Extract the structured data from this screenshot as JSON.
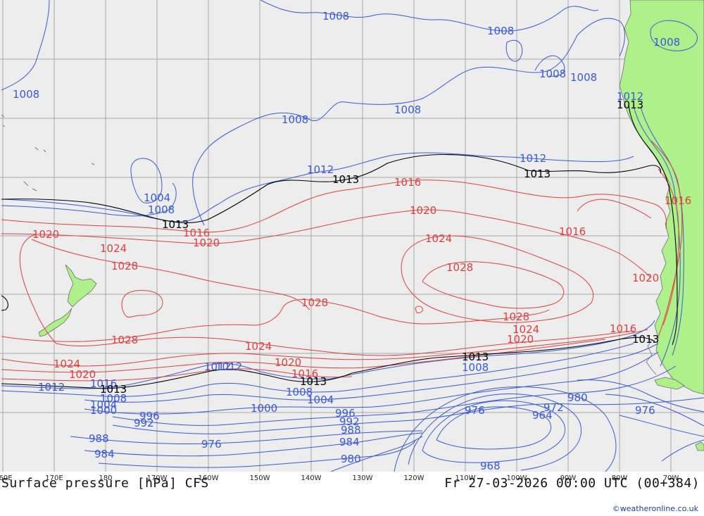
{
  "map": {
    "title": "Surface pressure [hPa] CFS",
    "valid_time": "Fr 27-03-2026 00:00 UTC (00+384)",
    "credit": "©weatheronline.co.uk",
    "longitude_ticks": [
      "60E",
      "170E",
      "180",
      "170W",
      "160W",
      "150W",
      "140W",
      "130W",
      "120W",
      "110W",
      "100W",
      "90W",
      "80W",
      "70W"
    ],
    "colors": {
      "land": "#aef08a",
      "ocean": "#ededed",
      "grid": "#a6a6a6",
      "high_isobar": "#e04040",
      "low_isobar": "#3a5ad8",
      "reference_isobar": "#000000"
    },
    "isobar_labels_red": [
      "1016",
      "1020",
      "1024",
      "1016",
      "1020",
      "1024",
      "1028",
      "1020",
      "1024",
      "1028",
      "1028",
      "1024",
      "1028",
      "1028",
      "1020",
      "1016",
      "1016",
      "1020",
      "1024",
      "1016",
      "1020",
      "1016"
    ],
    "isobar_labels_blue": [
      "1008",
      "1008",
      "1008",
      "1008",
      "1008",
      "1008",
      "1008",
      "1008",
      "1012",
      "1012",
      "1012",
      "1004",
      "1008",
      "1012",
      "1012",
      "1008",
      "1016",
      "1008",
      "1004",
      "1000",
      "996",
      "992",
      "988",
      "984",
      "976",
      "1000",
      "996",
      "1004",
      "1008",
      "992",
      "988",
      "984",
      "980",
      "976",
      "972",
      "964",
      "980",
      "976",
      "968",
      "1012"
    ],
    "isobar_labels_black": [
      "1013",
      "1013",
      "1013",
      "1013",
      "1013",
      "1013",
      "1013",
      "1013"
    ]
  }
}
